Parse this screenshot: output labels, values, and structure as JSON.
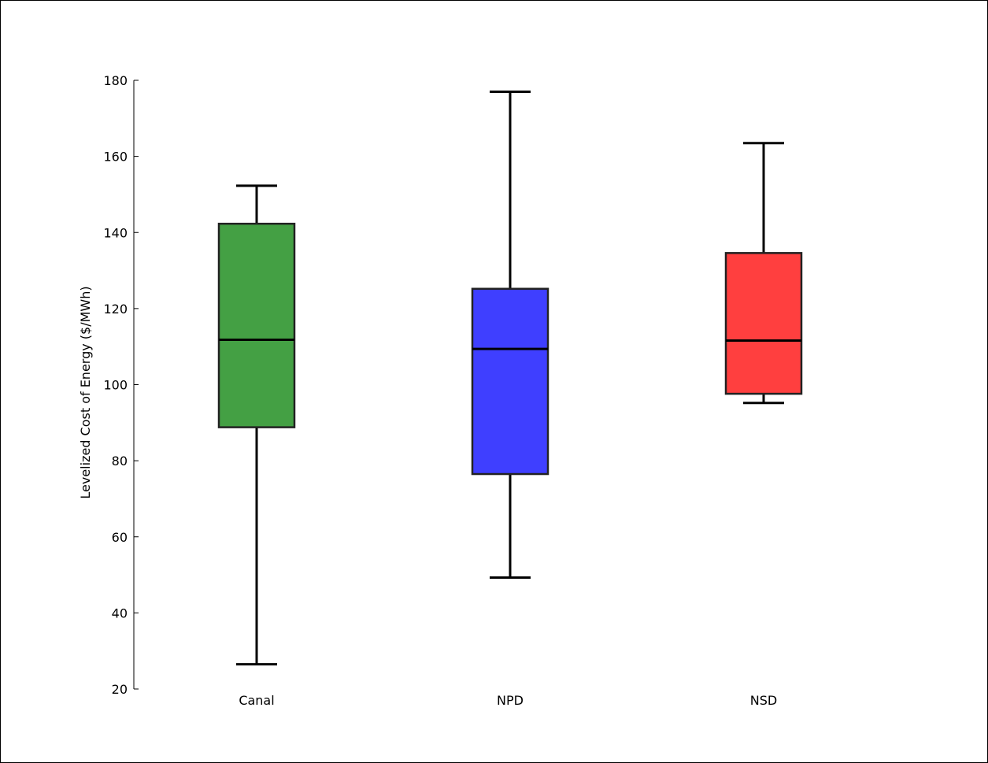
{
  "chart_data": {
    "type": "box",
    "title": "",
    "xlabel": "",
    "ylabel": "Levelized Cost of Energy ($/MWh)",
    "ylim": [
      20,
      180
    ],
    "yticks": [
      20,
      40,
      60,
      80,
      100,
      120,
      140,
      160,
      180
    ],
    "grid": false,
    "legend": "none",
    "categories": [
      "Canal",
      "NPD",
      "NSD"
    ],
    "boxes": [
      {
        "category": "Canal",
        "whisker_low": 26.5,
        "q1": 88.8,
        "median": 111.8,
        "q3": 142.3,
        "whisker_high": 152.3,
        "color": "#44a044"
      },
      {
        "category": "NPD",
        "whisker_low": 49.3,
        "q1": 76.5,
        "median": 109.4,
        "q3": 125.2,
        "whisker_high": 177.0,
        "color": "#3f3fff"
      },
      {
        "category": "NSD",
        "whisker_low": 95.2,
        "q1": 97.6,
        "median": 111.6,
        "q3": 134.6,
        "whisker_high": 163.5,
        "color": "#ff3f3f"
      }
    ]
  }
}
